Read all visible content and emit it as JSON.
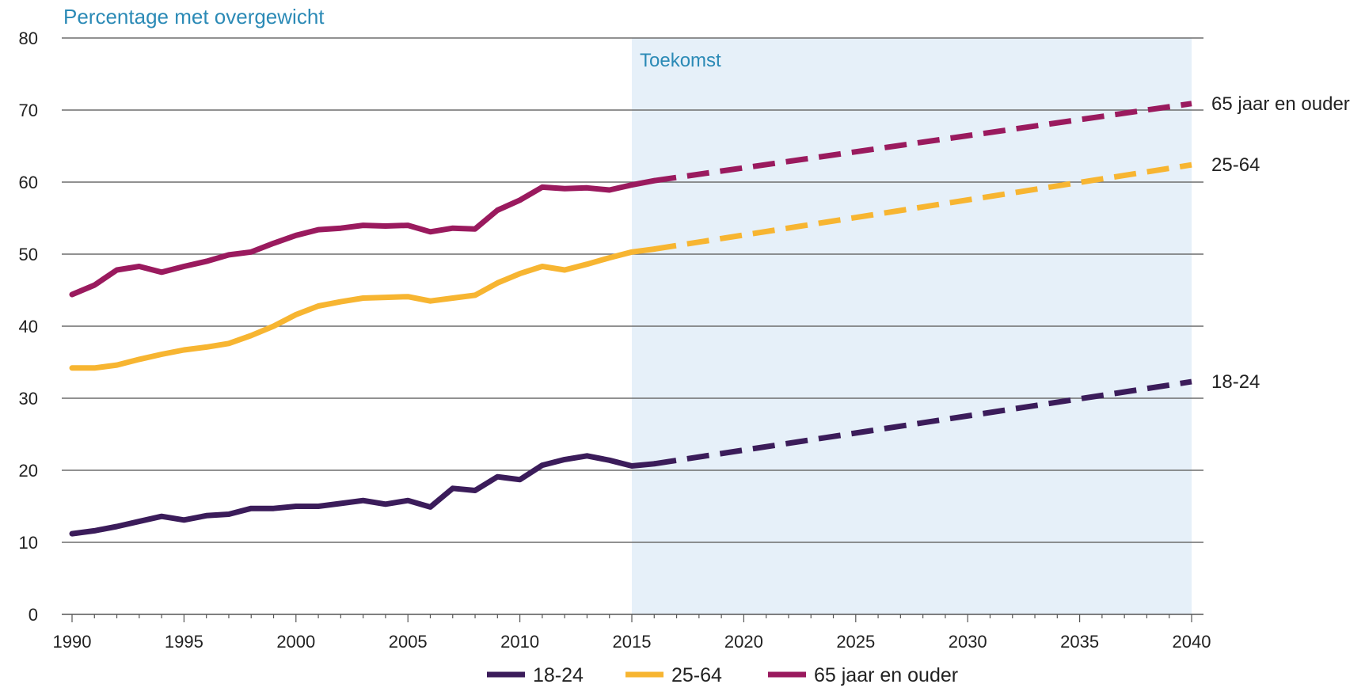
{
  "chart_data": {
    "type": "line",
    "title": "",
    "ylabel": "Percentage met overgewicht",
    "xlabel": "",
    "xlim": [
      1990,
      2040
    ],
    "ylim": [
      0,
      80
    ],
    "x_ticks": [
      1990,
      1995,
      2000,
      2005,
      2010,
      2015,
      2020,
      2025,
      2030,
      2035,
      2040
    ],
    "y_ticks": [
      0,
      10,
      20,
      30,
      40,
      50,
      60,
      70,
      80
    ],
    "grid": "horizontal",
    "legend_position": "bottom",
    "future_region": {
      "label": "Toekomst",
      "from": 2015,
      "to": 2040,
      "color": "#e6f0f9"
    },
    "series": [
      {
        "name": "18-24",
        "end_label": "18-24",
        "color": "#3b1c5a",
        "observed": {
          "x": [
            1990,
            1991,
            1992,
            1993,
            1994,
            1995,
            1996,
            1997,
            1998,
            1999,
            2000,
            2001,
            2002,
            2003,
            2004,
            2005,
            2006,
            2007,
            2008,
            2009,
            2010,
            2011,
            2012,
            2013,
            2014,
            2015,
            2016
          ],
          "y": [
            11.2,
            11.6,
            12.2,
            12.9,
            13.6,
            13.1,
            13.7,
            13.9,
            14.7,
            14.7,
            15.0,
            15.0,
            15.4,
            15.8,
            15.3,
            15.8,
            14.9,
            17.5,
            17.2,
            19.1,
            18.7,
            20.7,
            21.5,
            22.0,
            21.4,
            20.6,
            20.9
          ]
        },
        "projection": {
          "x": [
            2016,
            2040
          ],
          "y": [
            20.9,
            32.3
          ]
        }
      },
      {
        "name": "25-64",
        "end_label": "25-64",
        "color": "#f7b531",
        "observed": {
          "x": [
            1990,
            1991,
            1992,
            1993,
            1994,
            1995,
            1996,
            1997,
            1998,
            1999,
            2000,
            2001,
            2002,
            2003,
            2004,
            2005,
            2006,
            2007,
            2008,
            2009,
            2010,
            2011,
            2012,
            2013,
            2014,
            2015,
            2016
          ],
          "y": [
            34.2,
            34.2,
            34.6,
            35.4,
            36.1,
            36.7,
            37.1,
            37.6,
            38.7,
            40.0,
            41.6,
            42.8,
            43.4,
            43.9,
            44.0,
            44.1,
            43.5,
            43.9,
            44.3,
            46.0,
            47.3,
            48.3,
            47.8,
            48.6,
            49.5,
            50.3,
            50.7
          ]
        },
        "projection": {
          "x": [
            2016,
            2040
          ],
          "y": [
            50.7,
            62.4
          ]
        }
      },
      {
        "name": "65 jaar en ouder",
        "end_label": "65 jaar en ouder",
        "color": "#9a1a5e",
        "observed": {
          "x": [
            1990,
            1991,
            1992,
            1993,
            1994,
            1995,
            1996,
            1997,
            1998,
            1999,
            2000,
            2001,
            2002,
            2003,
            2004,
            2005,
            2006,
            2007,
            2008,
            2009,
            2010,
            2011,
            2012,
            2013,
            2014,
            2015,
            2016
          ],
          "y": [
            44.4,
            45.7,
            47.8,
            48.3,
            47.5,
            48.3,
            49.0,
            49.9,
            50.3,
            51.5,
            52.6,
            53.4,
            53.6,
            54.0,
            53.9,
            54.0,
            53.1,
            53.6,
            53.5,
            56.1,
            57.5,
            59.3,
            59.1,
            59.2,
            58.9,
            59.6,
            60.2
          ]
        },
        "projection": {
          "x": [
            2016,
            2040
          ],
          "y": [
            60.2,
            70.9
          ]
        }
      }
    ],
    "legend": [
      {
        "label": "18-24",
        "color": "#3b1c5a"
      },
      {
        "label": "25-64",
        "color": "#f7b531"
      },
      {
        "label": "65 jaar en ouder",
        "color": "#9a1a5e"
      }
    ]
  }
}
